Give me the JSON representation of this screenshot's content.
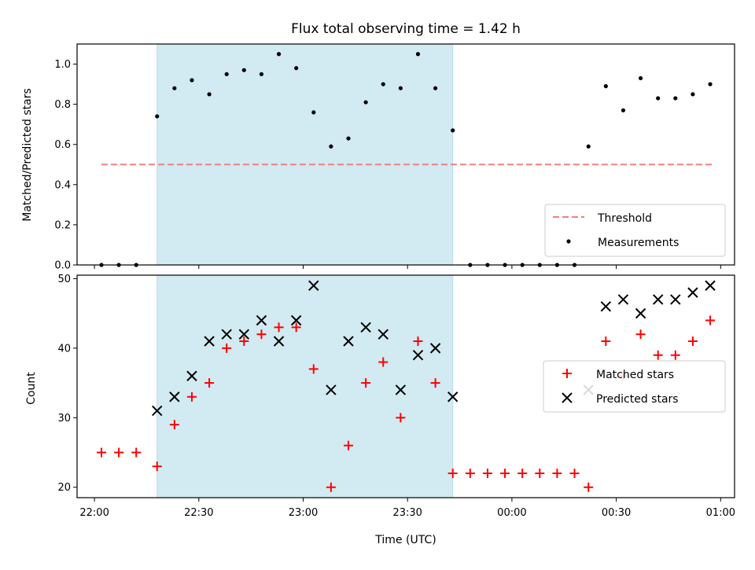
{
  "chart_data": [
    {
      "type": "scatter",
      "title": "Flux total observing time = 1.42 h",
      "xlabel": "",
      "ylabel": "Matched/Predicted stars",
      "ylim": [
        0.0,
        1.1
      ],
      "xlim": [
        "21:55",
        "01:04"
      ],
      "yticks": [
        0.0,
        0.2,
        0.4,
        0.6,
        0.8,
        1.0
      ],
      "ytick_labels": [
        "0.0",
        "0.2",
        "0.4",
        "0.6",
        "0.8",
        "1.0"
      ],
      "shaded_region": {
        "x_start": "22:18",
        "x_end": "23:43",
        "color": "#add8e6"
      },
      "threshold": {
        "name": "Threshold",
        "value": 0.5,
        "x_start": "22:02",
        "x_end": "00:58",
        "color": "#f08080"
      },
      "legend": {
        "placement": "lower-right",
        "entries": [
          "Threshold",
          "Measurements"
        ]
      },
      "series": [
        {
          "name": "Measurements",
          "color": "#000000",
          "points": [
            [
              "22:02",
              0.0
            ],
            [
              "22:07",
              0.0
            ],
            [
              "22:12",
              0.0
            ],
            [
              "22:18",
              0.74
            ],
            [
              "22:23",
              0.88
            ],
            [
              "22:28",
              0.92
            ],
            [
              "22:33",
              0.85
            ],
            [
              "22:38",
              0.95
            ],
            [
              "22:43",
              0.97
            ],
            [
              "22:48",
              0.95
            ],
            [
              "22:53",
              1.05
            ],
            [
              "22:58",
              0.98
            ],
            [
              "23:03",
              0.76
            ],
            [
              "23:08",
              0.59
            ],
            [
              "23:13",
              0.63
            ],
            [
              "23:18",
              0.81
            ],
            [
              "23:23",
              0.9
            ],
            [
              "23:28",
              0.88
            ],
            [
              "23:33",
              1.05
            ],
            [
              "23:38",
              0.88
            ],
            [
              "23:43",
              0.67
            ],
            [
              "23:48",
              0.0
            ],
            [
              "23:53",
              0.0
            ],
            [
              "23:58",
              0.0
            ],
            [
              "00:03",
              0.0
            ],
            [
              "00:08",
              0.0
            ],
            [
              "00:13",
              0.0
            ],
            [
              "00:18",
              0.0
            ],
            [
              "00:22",
              0.59
            ],
            [
              "00:27",
              0.89
            ],
            [
              "00:32",
              0.77
            ],
            [
              "00:37",
              0.93
            ],
            [
              "00:42",
              0.83
            ],
            [
              "00:47",
              0.83
            ],
            [
              "00:52",
              0.85
            ],
            [
              "00:57",
              0.9
            ]
          ]
        }
      ]
    },
    {
      "type": "scatter",
      "title": "",
      "xlabel": "Time (UTC)",
      "ylabel": "Count",
      "ylim": [
        18.5,
        50.5
      ],
      "xlim": [
        "21:55",
        "01:04"
      ],
      "yticks": [
        20,
        30,
        40,
        50
      ],
      "ytick_labels": [
        "20",
        "30",
        "40",
        "50"
      ],
      "xticks": [
        "22:00",
        "22:30",
        "23:00",
        "23:30",
        "00:00",
        "00:30",
        "01:00"
      ],
      "xtick_labels": [
        "22:00",
        "22:30",
        "23:00",
        "23:30",
        "00:00",
        "00:30",
        "01:00"
      ],
      "shaded_region": {
        "x_start": "22:18",
        "x_end": "23:43",
        "color": "#add8e6"
      },
      "legend": {
        "placement": "right",
        "entries": [
          "Matched stars",
          "Predicted stars"
        ]
      },
      "series": [
        {
          "name": "Matched stars",
          "marker": "plus",
          "color": "#ff0000",
          "points": [
            [
              "22:02",
              25
            ],
            [
              "22:07",
              25
            ],
            [
              "22:12",
              25
            ],
            [
              "22:18",
              23
            ],
            [
              "22:23",
              29
            ],
            [
              "22:28",
              33
            ],
            [
              "22:33",
              35
            ],
            [
              "22:38",
              40
            ],
            [
              "22:43",
              41
            ],
            [
              "22:48",
              42
            ],
            [
              "22:53",
              43
            ],
            [
              "22:58",
              43
            ],
            [
              "23:03",
              37
            ],
            [
              "23:08",
              20
            ],
            [
              "23:13",
              26
            ],
            [
              "23:18",
              35
            ],
            [
              "23:23",
              38
            ],
            [
              "23:28",
              30
            ],
            [
              "23:33",
              41
            ],
            [
              "23:38",
              35
            ],
            [
              "23:43",
              22
            ],
            [
              "23:48",
              22
            ],
            [
              "23:53",
              22
            ],
            [
              "23:58",
              22
            ],
            [
              "00:03",
              22
            ],
            [
              "00:08",
              22
            ],
            [
              "00:13",
              22
            ],
            [
              "00:18",
              22
            ],
            [
              "00:22",
              20
            ],
            [
              "00:27",
              41
            ],
            [
              "00:32",
              36
            ],
            [
              "00:37",
              42
            ],
            [
              "00:42",
              39
            ],
            [
              "00:47",
              39
            ],
            [
              "00:52",
              41
            ],
            [
              "00:57",
              44
            ]
          ]
        },
        {
          "name": "Predicted stars",
          "marker": "x",
          "color": "#000000",
          "points": [
            [
              "22:18",
              31
            ],
            [
              "22:23",
              33
            ],
            [
              "22:28",
              36
            ],
            [
              "22:33",
              41
            ],
            [
              "22:38",
              42
            ],
            [
              "22:43",
              42
            ],
            [
              "22:48",
              44
            ],
            [
              "22:53",
              41
            ],
            [
              "22:58",
              44
            ],
            [
              "23:03",
              49
            ],
            [
              "23:08",
              34
            ],
            [
              "23:13",
              41
            ],
            [
              "23:18",
              43
            ],
            [
              "23:23",
              42
            ],
            [
              "23:28",
              34
            ],
            [
              "23:33",
              39
            ],
            [
              "23:38",
              40
            ],
            [
              "23:43",
              33
            ],
            [
              "00:22",
              34
            ],
            [
              "00:27",
              46
            ],
            [
              "00:32",
              47
            ],
            [
              "00:37",
              45
            ],
            [
              "00:42",
              47
            ],
            [
              "00:47",
              47
            ],
            [
              "00:52",
              48
            ],
            [
              "00:57",
              49
            ]
          ]
        }
      ]
    }
  ]
}
